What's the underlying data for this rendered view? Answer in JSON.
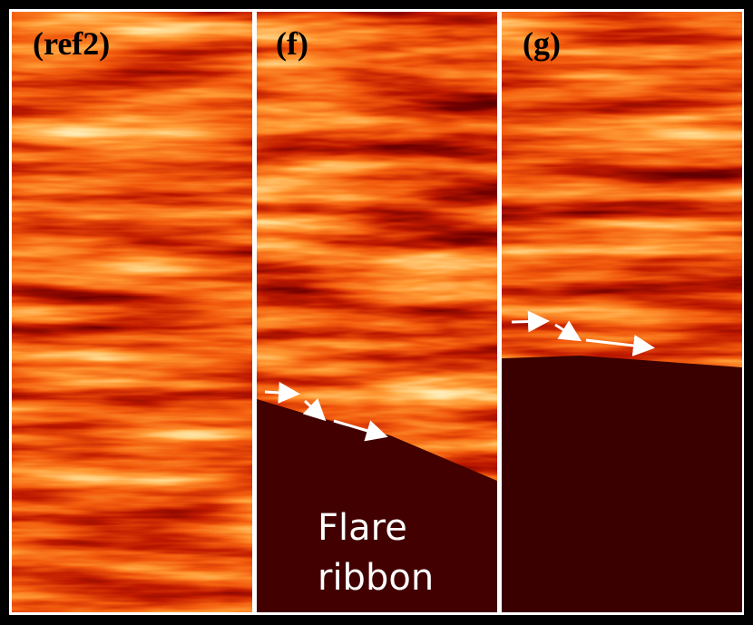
{
  "panels": [
    {
      "label": "(ref2)"
    },
    {
      "label": "(f)",
      "annotation": [
        "Flare",
        "ribbon"
      ]
    },
    {
      "label": "(g)"
    }
  ]
}
